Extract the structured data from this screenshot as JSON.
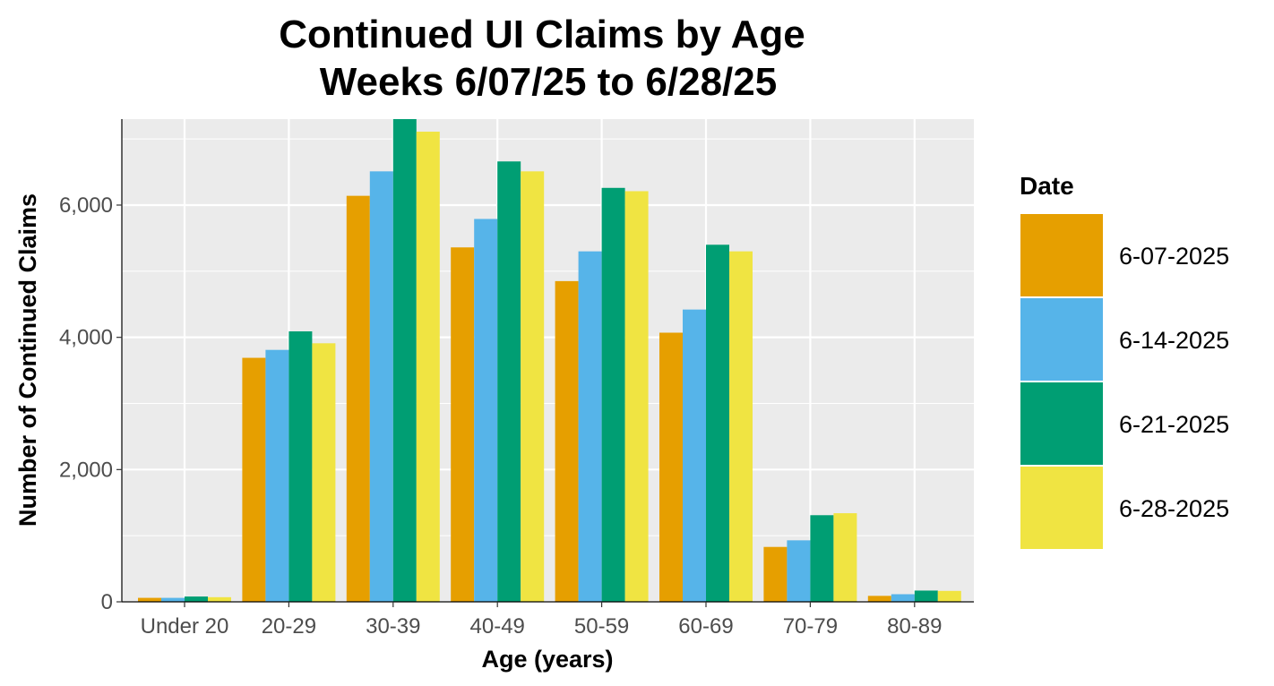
{
  "chart_data": {
    "type": "bar",
    "title": "Continued UI Claims by Age",
    "subtitle": "Weeks 6/07/25 to 6/28/25",
    "xlabel": "Age (years)",
    "ylabel": "Number of Continued Claims",
    "ylim": [
      0,
      7300
    ],
    "yticks": [
      0,
      2000,
      4000,
      6000
    ],
    "ytick_labels": [
      "0",
      "2,000",
      "4,000",
      "6,000"
    ],
    "categories": [
      "Under 20",
      "20-29",
      "30-39",
      "40-49",
      "50-59",
      "60-69",
      "70-79",
      "80-89"
    ],
    "series": [
      {
        "name": "6-07-2025",
        "color": "#E69F00",
        "values": [
          60,
          3690,
          6140,
          5360,
          4850,
          4070,
          830,
          90
        ]
      },
      {
        "name": "6-14-2025",
        "color": "#56B4E9",
        "values": [
          60,
          3810,
          6510,
          5790,
          5300,
          4420,
          930,
          115
        ]
      },
      {
        "name": "6-21-2025",
        "color": "#009E73",
        "values": [
          80,
          4090,
          7350,
          6660,
          6260,
          5400,
          1310,
          170
        ]
      },
      {
        "name": "6-28-2025",
        "color": "#F0E442",
        "values": [
          70,
          3910,
          7110,
          6510,
          6210,
          5300,
          1340,
          165
        ]
      }
    ],
    "legend": {
      "title": "Date",
      "position": "right"
    },
    "grid": true,
    "panel_background": "#EBEBEB",
    "gridline_color": "#FFFFFF"
  }
}
